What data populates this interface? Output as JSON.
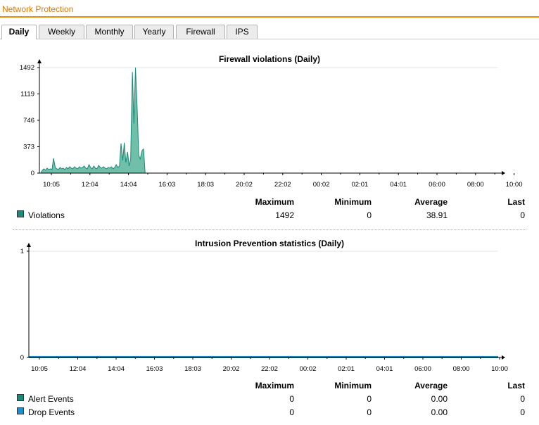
{
  "header": {
    "title": "Network Protection"
  },
  "tabs": [
    {
      "label": "Daily",
      "active": true
    },
    {
      "label": "Weekly",
      "active": false
    },
    {
      "label": "Monthly",
      "active": false
    },
    {
      "label": "Yearly",
      "active": false
    },
    {
      "label": "Firewall",
      "active": false
    },
    {
      "label": "IPS",
      "active": false
    }
  ],
  "firewall": {
    "title": "Firewall violations (Daily)",
    "stat_headers": {
      "max": "Maximum",
      "min": "Minimum",
      "avg": "Average",
      "last": "Last"
    },
    "legend": [
      {
        "name": "Violations",
        "color": "#1a8a7a",
        "max": "1492",
        "min": "0",
        "avg": "38.91",
        "last": "0"
      }
    ]
  },
  "ips": {
    "title": "Intrusion Prevention statistics (Daily)",
    "stat_headers": {
      "max": "Maximum",
      "min": "Minimum",
      "avg": "Average",
      "last": "Last"
    },
    "legend": [
      {
        "name": "Alert Events",
        "color": "#1a8a7a",
        "max": "0",
        "min": "0",
        "avg": "0.00",
        "last": "0"
      },
      {
        "name": "Drop Events",
        "color": "#1e90d0",
        "max": "0",
        "min": "0",
        "avg": "0.00",
        "last": "0"
      }
    ]
  },
  "chart_data": [
    {
      "type": "area",
      "title": "Firewall violations (Daily)",
      "xlabel": "",
      "ylabel": "",
      "x_ticks": [
        "10:05",
        "12:04",
        "14:04",
        "16:03",
        "18:03",
        "20:02",
        "22:02",
        "00:02",
        "02:01",
        "04:01",
        "06:00",
        "08:00",
        "10:00"
      ],
      "y_ticks": [
        0,
        373,
        746,
        1119,
        1492
      ],
      "ylim": [
        0,
        1492
      ],
      "grid": false,
      "series": [
        {
          "name": "Violations",
          "color": "#1a8a7a",
          "x_hours": [
            0,
            0.08,
            0.16,
            0.25,
            0.33,
            0.41,
            0.5,
            0.58,
            0.66,
            0.75,
            0.83,
            0.91,
            1.0,
            1.08,
            1.16,
            1.25,
            1.33,
            1.41,
            1.5,
            1.58,
            1.66,
            1.75,
            1.83,
            1.91,
            2.0,
            2.08,
            2.16,
            2.25,
            2.33,
            2.41,
            2.5,
            2.58,
            2.66,
            2.75,
            2.83,
            2.91,
            3.0,
            3.08,
            3.16,
            3.25,
            3.33,
            3.41,
            3.5,
            3.58,
            3.66,
            3.75,
            3.83,
            3.91,
            4.0,
            4.08,
            4.16,
            4.25,
            4.33,
            4.41,
            4.5,
            4.58,
            4.66,
            4.75,
            4.83,
            4.91,
            5.0,
            5.08,
            5.16,
            5.25,
            5.33,
            5.41,
            5.5,
            5.58,
            5.66,
            5.75,
            5.83,
            5.91,
            6.0,
            6.08,
            6.16,
            24
          ],
          "values": [
            0,
            40,
            60,
            40,
            70,
            50,
            60,
            50,
            210,
            80,
            60,
            50,
            80,
            60,
            70,
            50,
            80,
            60,
            90,
            70,
            60,
            90,
            70,
            60,
            90,
            70,
            80,
            100,
            70,
            60,
            120,
            80,
            60,
            100,
            70,
            60,
            110,
            80,
            70,
            90,
            70,
            60,
            80,
            70,
            90,
            60,
            80,
            120,
            80,
            100,
            420,
            180,
            430,
            150,
            300,
            100,
            200,
            1430,
            700,
            1492,
            900,
            250,
            200,
            320,
            340,
            0,
            0,
            0,
            0,
            0,
            0,
            0,
            0,
            0,
            0,
            0
          ]
        }
      ]
    },
    {
      "type": "area",
      "title": "Intrusion Prevention statistics (Daily)",
      "xlabel": "",
      "ylabel": "",
      "x_ticks": [
        "10:05",
        "12:04",
        "14:04",
        "16:03",
        "18:03",
        "20:02",
        "22:02",
        "00:02",
        "02:01",
        "04:01",
        "06:00",
        "08:00",
        "10:00"
      ],
      "y_ticks": [
        0,
        1
      ],
      "ylim": [
        0,
        1
      ],
      "grid": false,
      "series": [
        {
          "name": "Alert Events",
          "color": "#1a8a7a",
          "values": [
            0,
            0
          ]
        },
        {
          "name": "Drop Events",
          "color": "#1e90d0",
          "values": [
            0,
            0
          ]
        }
      ]
    }
  ]
}
